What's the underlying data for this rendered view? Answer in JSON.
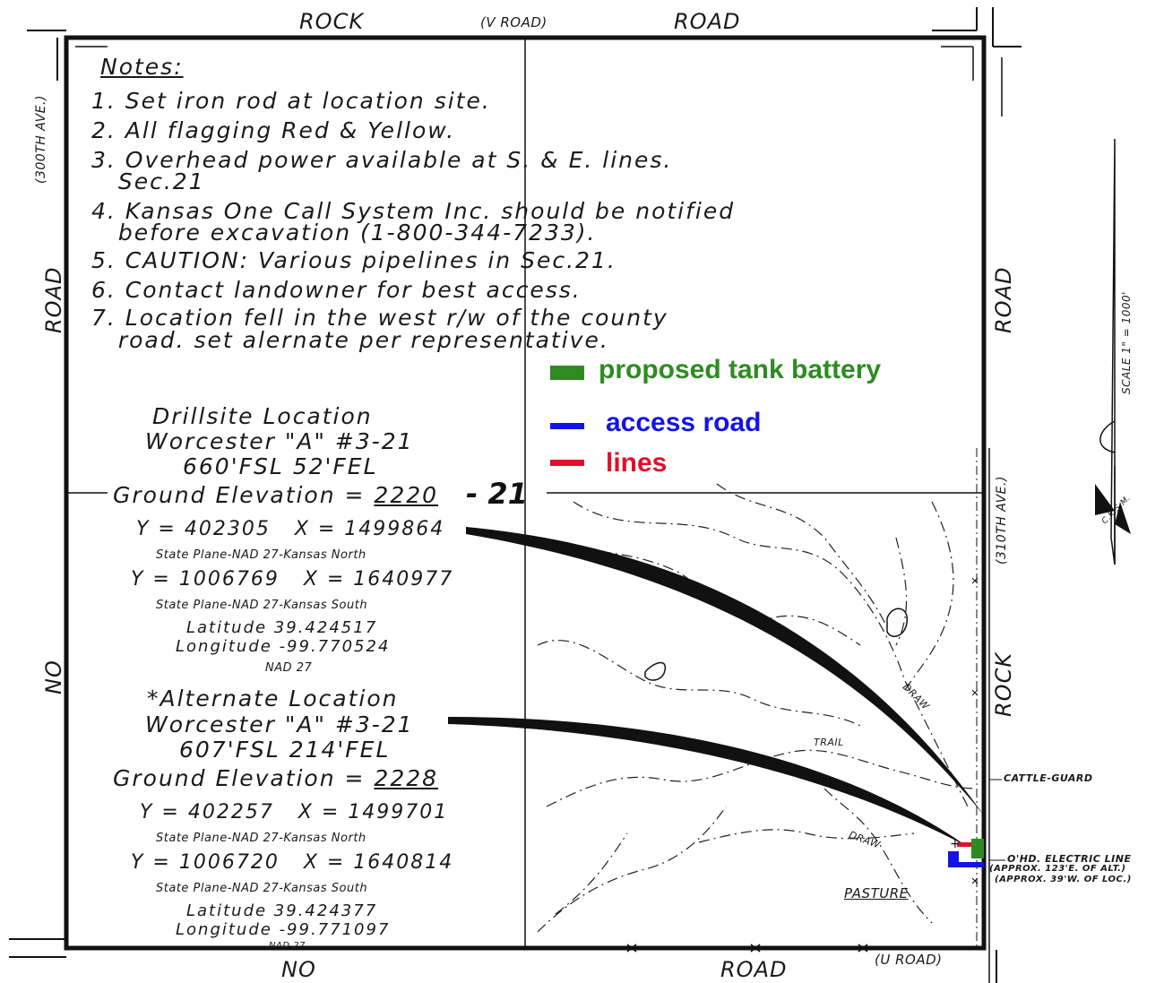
{
  "roads": {
    "top_left": "ROCK",
    "top_mid": "(V ROAD)",
    "top_right": "ROAD",
    "left_upper_ave": "(300TH AVE.)",
    "left_road": "ROAD",
    "left_no": "NO",
    "right_road": "ROAD",
    "right_ave": "(310TH AVE.)",
    "right_rock": "ROCK",
    "bottom_no": "NO",
    "bottom_road": "ROAD",
    "bottom_u": "(U ROAD)"
  },
  "notes": {
    "title": "Notes:",
    "items": [
      "1. Set iron rod at location site.",
      "2. All flagging Red & Yellow.",
      "3. Overhead power available at S. & E. lines.",
      "   Sec.21",
      "4. Kansas One Call System Inc. should be notified",
      "   before excavation (1-800-344-7233).",
      "5. CAUTION: Various pipelines in Sec.21.",
      "6. Contact landowner for best access.",
      "7. Location fell in the west r/w of the county",
      "   road. set alernate per representative."
    ]
  },
  "legend": {
    "tank_battery": "proposed tank battery",
    "access_road": "access road",
    "lines": "lines",
    "colors": {
      "tank_battery": "#2e8b22",
      "access_road": "#1414e6",
      "lines": "#e0102a"
    }
  },
  "drillsite": {
    "title": "Drillsite Location",
    "well": "Worcester \"A\" #3-21",
    "footage": "660'FSL 52'FEL",
    "elev_label": "Ground Elevation = ",
    "elev_value": "2220",
    "section": "- 21",
    "north_coords": "Y = 402305   X = 1499864",
    "north_label": "State Plane-NAD 27-Kansas North",
    "south_coords": "Y = 1006769   X = 1640977",
    "south_label": "State Plane-NAD 27-Kansas South",
    "latitude": "Latitude 39.424517",
    "longitude": "Longitude -99.770524",
    "datum": "NAD 27"
  },
  "alternate": {
    "title": "*Alternate Location",
    "well": "Worcester \"A\" #3-21",
    "footage": "607'FSL 214'FEL",
    "elev_label": "Ground Elevation = ",
    "elev_value": "2228",
    "north_coords": "Y = 402257   X = 1499701",
    "north_label": "State Plane-NAD 27-Kansas North",
    "south_coords": "Y = 1006720   X = 1640814",
    "south_label": "State Plane-NAD 27-Kansas South",
    "latitude": "Latitude 39.424377",
    "longitude": "Longitude -99.771097",
    "datum": "NAD 27"
  },
  "features": {
    "trail": "TRAIL",
    "draw_upper": "DRAW",
    "draw_lower": "DRAW",
    "cattle_guard": "CATTLE-GUARD",
    "electric_line": "O'HD. ELECTRIC LINE",
    "approx_alt": "(APPROX. 123'E. OF ALT.)",
    "approx_loc": "(APPROX. 39'W. OF LOC.)",
    "pasture": "PASTURE"
  },
  "scale": {
    "label": "SCALE 1\" = 1000'",
    "ckswm": "C.K.S.M."
  }
}
